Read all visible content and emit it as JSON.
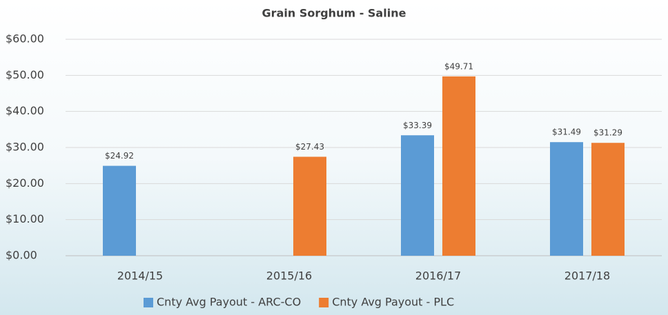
{
  "chart_data": {
    "type": "bar",
    "title": "Grain Sorghum - Saline",
    "categories": [
      "2014/15",
      "2015/16",
      "2016/17",
      "2017/18"
    ],
    "series": [
      {
        "name": "Cnty Avg Payout - ARC-CO",
        "color": "#5b9bd5",
        "values": [
          24.92,
          null,
          33.39,
          31.49
        ],
        "value_labels": [
          "$24.92",
          null,
          "$33.39",
          "$31.49"
        ]
      },
      {
        "name": "Cnty Avg Payout - PLC",
        "color": "#ed7d31",
        "values": [
          null,
          27.43,
          49.71,
          31.29
        ],
        "value_labels": [
          null,
          "$27.43",
          "$49.71",
          "$31.29"
        ]
      }
    ],
    "ylim": [
      0,
      60
    ],
    "yticks": [
      {
        "value": 0,
        "label": "$0.00"
      },
      {
        "value": 10,
        "label": "$10.00"
      },
      {
        "value": 20,
        "label": "$20.00"
      },
      {
        "value": 30,
        "label": "$30.00"
      },
      {
        "value": 40,
        "label": "$40.00"
      },
      {
        "value": 50,
        "label": "$50.00"
      },
      {
        "value": 60,
        "label": "$60.00"
      }
    ],
    "grid": true,
    "legend": "bottom"
  }
}
